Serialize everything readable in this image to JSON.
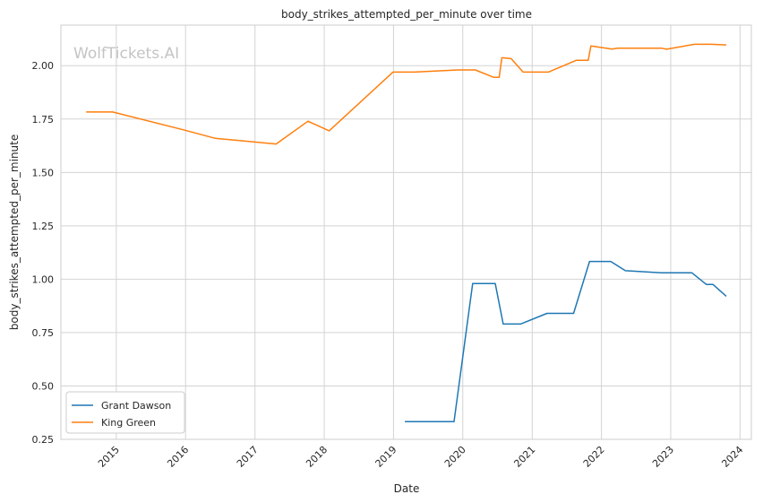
{
  "chart_data": {
    "type": "line",
    "title": "body_strikes_attempted_per_minute over time",
    "xlabel": "Date",
    "ylabel": "body_strikes_attempted_per_minute",
    "watermark": "WolfTickets.AI",
    "x_tick_labels": [
      "2015",
      "2016",
      "2017",
      "2018",
      "2019",
      "2020",
      "2021",
      "2022",
      "2023",
      "2024"
    ],
    "y_tick_labels": [
      "0.25",
      "0.50",
      "0.75",
      "1.00",
      "1.25",
      "1.50",
      "1.75",
      "2.00"
    ],
    "xlim": [
      "2014-03-15",
      "2024-03-01"
    ],
    "ylim": [
      0.25,
      2.19
    ],
    "grid": true,
    "legend": "lower-left",
    "series": [
      {
        "name": "Grant Dawson",
        "color": "#1f77b4",
        "points": [
          {
            "x": "2019-03-02",
            "y": 0.333
          },
          {
            "x": "2019-11-16",
            "y": 0.333
          },
          {
            "x": "2020-02-22",
            "y": 0.98
          },
          {
            "x": "2020-06-20",
            "y": 0.98
          },
          {
            "x": "2020-08-01",
            "y": 0.79
          },
          {
            "x": "2020-10-31",
            "y": 0.79
          },
          {
            "x": "2021-03-20",
            "y": 0.84
          },
          {
            "x": "2021-08-07",
            "y": 0.84
          },
          {
            "x": "2021-10-30",
            "y": 1.083
          },
          {
            "x": "2022-02-19",
            "y": 1.083
          },
          {
            "x": "2022-05-07",
            "y": 1.04
          },
          {
            "x": "2022-11-12",
            "y": 1.03
          },
          {
            "x": "2023-04-22",
            "y": 1.03
          },
          {
            "x": "2023-07-08",
            "y": 0.975
          },
          {
            "x": "2023-08-12",
            "y": 0.975
          },
          {
            "x": "2023-10-21",
            "y": 0.92
          }
        ]
      },
      {
        "name": "King Green",
        "color": "#ff7f0e",
        "points": [
          {
            "x": "2014-07-26",
            "y": 1.783
          },
          {
            "x": "2014-12-13",
            "y": 1.783
          },
          {
            "x": "2015-12-19",
            "y": 1.7
          },
          {
            "x": "2016-06-04",
            "y": 1.66
          },
          {
            "x": "2017-04-22",
            "y": 1.633
          },
          {
            "x": "2017-10-07",
            "y": 1.74
          },
          {
            "x": "2018-01-27",
            "y": 1.695
          },
          {
            "x": "2018-12-29",
            "y": 1.97
          },
          {
            "x": "2019-04-20",
            "y": 1.97
          },
          {
            "x": "2019-12-07",
            "y": 1.98
          },
          {
            "x": "2020-03-07",
            "y": 1.98
          },
          {
            "x": "2020-06-13",
            "y": 1.945
          },
          {
            "x": "2020-07-11",
            "y": 1.945
          },
          {
            "x": "2020-07-25",
            "y": 2.037
          },
          {
            "x": "2020-09-12",
            "y": 2.033
          },
          {
            "x": "2020-11-14",
            "y": 1.97
          },
          {
            "x": "2021-03-27",
            "y": 1.97
          },
          {
            "x": "2021-08-21",
            "y": 2.025
          },
          {
            "x": "2021-10-23",
            "y": 2.025
          },
          {
            "x": "2021-11-06",
            "y": 2.092
          },
          {
            "x": "2022-02-26",
            "y": 2.078
          },
          {
            "x": "2022-03-26",
            "y": 2.082
          },
          {
            "x": "2022-11-12",
            "y": 2.082
          },
          {
            "x": "2022-12-10",
            "y": 2.077
          },
          {
            "x": "2023-05-06",
            "y": 2.1
          },
          {
            "x": "2023-08-05",
            "y": 2.1
          },
          {
            "x": "2023-10-21",
            "y": 2.097
          }
        ]
      }
    ]
  }
}
